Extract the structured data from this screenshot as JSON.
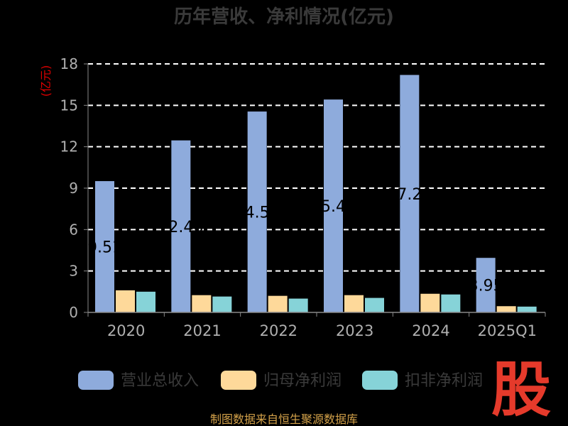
{
  "chart_data": {
    "type": "bar",
    "title": "历年营收、净利情况(亿元)",
    "ylabel": "(亿元)",
    "categories": [
      "2020",
      "2021",
      "2022",
      "2023",
      "2024",
      "2025Q1"
    ],
    "ylim": [
      0,
      18
    ],
    "yticks": [
      0,
      3,
      6,
      9,
      12,
      15,
      18
    ],
    "grid": true,
    "legend_position": "bottom",
    "series": [
      {
        "name": "营业总收入",
        "color": "#8eabdc",
        "values": [
          9.51,
          12.46,
          14.55,
          15.42,
          17.2,
          3.95
        ],
        "data_labels": [
          "9.51",
          "12.46",
          "14.55",
          "15.42",
          "17.20",
          "3.95"
        ]
      },
      {
        "name": "归母净利润",
        "color": "#fed99a",
        "values": [
          1.6,
          1.25,
          1.2,
          1.25,
          1.35,
          0.45
        ]
      },
      {
        "name": "扣非净利润",
        "color": "#86d3d8",
        "values": [
          1.5,
          1.15,
          1.0,
          1.05,
          1.3,
          0.42
        ]
      }
    ]
  },
  "source": "制图数据来自恒生聚源数据库",
  "logo_text": "股"
}
